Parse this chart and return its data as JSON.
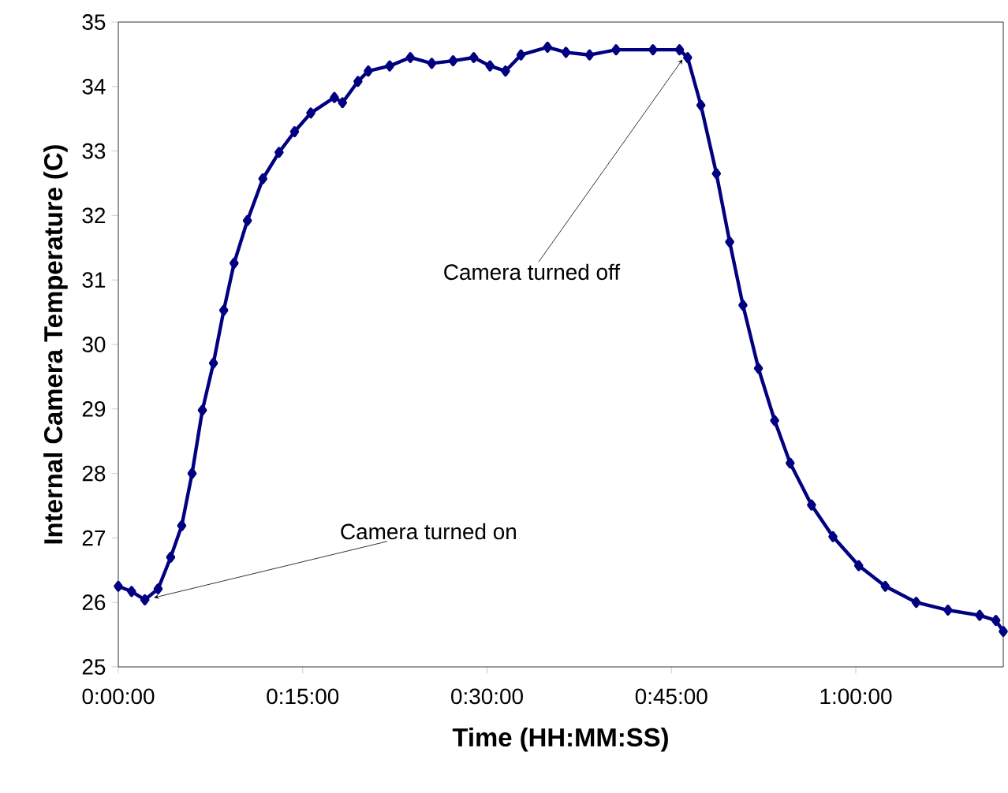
{
  "chart_data": {
    "type": "line",
    "xlabel": "Time (HH:MM:SS)",
    "ylabel": "Internal Camera Temperature (C)",
    "x": [
      0,
      0.018,
      0.036,
      0.054,
      0.071,
      0.086,
      0.1,
      0.114,
      0.129,
      0.143,
      0.157,
      0.175,
      0.196,
      0.218,
      0.239,
      0.261,
      0.293,
      0.304,
      0.325,
      0.339,
      0.368,
      0.396,
      0.425,
      0.454,
      0.482,
      0.504,
      0.525,
      0.546,
      0.582,
      0.607,
      0.639,
      0.675,
      0.725,
      0.761,
      0.772,
      0.79,
      0.811,
      0.829,
      0.847,
      0.868,
      0.89,
      0.911,
      0.94,
      0.969,
      1.004,
      1.04,
      1.082,
      1.125,
      1.168,
      1.19,
      1.2
    ],
    "series": [
      {
        "color": "#000080",
        "values": [
          26.25,
          26.17,
          26.04,
          26.21,
          26.7,
          27.19,
          28.0,
          28.98,
          29.71,
          30.53,
          31.26,
          31.92,
          32.57,
          32.98,
          33.3,
          33.59,
          33.83,
          33.75,
          34.08,
          34.24,
          34.32,
          34.45,
          34.36,
          34.4,
          34.45,
          34.32,
          34.24,
          34.49,
          34.61,
          34.53,
          34.49,
          34.57,
          34.57,
          34.57,
          34.45,
          33.71,
          32.65,
          31.59,
          30.61,
          29.63,
          28.82,
          28.16,
          27.51,
          27.02,
          26.57,
          26.25,
          26.0,
          25.88,
          25.8,
          25.72,
          25.55
        ]
      }
    ],
    "xlim": [
      0,
      1.2
    ],
    "ylim": [
      25,
      35
    ],
    "xticks": [
      {
        "value": 0,
        "label": "0:00:00"
      },
      {
        "value": 0.25,
        "label": "0:15:00"
      },
      {
        "value": 0.5,
        "label": "0:30:00"
      },
      {
        "value": 0.75,
        "label": "0:45:00"
      },
      {
        "value": 1.0,
        "label": "1:00:00"
      }
    ],
    "yticks": [
      25,
      26,
      27,
      28,
      29,
      30,
      31,
      32,
      33,
      34,
      35
    ],
    "marker": "diamond",
    "annotations": [
      {
        "text": "Camera turned on",
        "x": 0.04,
        "y": 26.05
      },
      {
        "text": "Camera turned off",
        "x": 0.77,
        "y": 34.5
      }
    ]
  }
}
